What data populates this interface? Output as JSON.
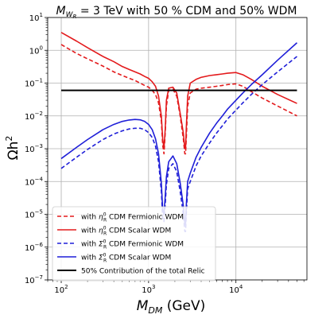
{
  "chart_data": {
    "type": "line",
    "title": {
      "prefix": "M",
      "sub": "W",
      "subsub": "R",
      "rest": " = 3 TeV with 50 % CDM and 50% WDM"
    },
    "xlabel": {
      "main": "M",
      "sub": "DM",
      "unit": " (GeV)"
    },
    "ylabel": {
      "main": "Ωh",
      "sup": "2"
    },
    "x_scale": "log",
    "y_scale": "log",
    "xlim": [
      70,
      65000
    ],
    "ylim": [
      1e-07,
      10
    ],
    "x_ticks": [
      {
        "value": 100,
        "base": "10",
        "exp": "2"
      },
      {
        "value": 1000,
        "base": "10",
        "exp": "3"
      },
      {
        "value": 10000,
        "base": "10",
        "exp": "4"
      }
    ],
    "y_ticks": [
      {
        "value": 1e-07,
        "base": "10",
        "exp": "−7"
      },
      {
        "value": 1e-06,
        "base": "10",
        "exp": "−6"
      },
      {
        "value": 1e-05,
        "base": "10",
        "exp": "−5"
      },
      {
        "value": 0.0001,
        "base": "10",
        "exp": "−4"
      },
      {
        "value": 0.001,
        "base": "10",
        "exp": "−3"
      },
      {
        "value": 0.01,
        "base": "10",
        "exp": "−2"
      },
      {
        "value": 0.1,
        "base": "10",
        "exp": "−1"
      },
      {
        "value": 1,
        "base": "10",
        "exp": "0"
      },
      {
        "value": 10,
        "base": "10",
        "exp": "1"
      }
    ],
    "grid": true,
    "legend_position": "bottom-left",
    "series": [
      {
        "legend": {
          "pre": "with ",
          "sym": "η",
          "sup": "0",
          "sub": "R",
          "post": " CDM Fermionic WDM"
        },
        "color": "#e31a1c",
        "dash": "dashed",
        "x": [
          100,
          150,
          200,
          300,
          400,
          500,
          600,
          700,
          800,
          900,
          1000,
          1100,
          1200,
          1300,
          1400,
          1450,
          1500,
          1550,
          1600,
          1700,
          1900,
          2100,
          2300,
          2500,
          2600,
          2650,
          2700,
          2800,
          3000,
          3500,
          4000,
          5000,
          6000,
          7000,
          8000,
          10000,
          12000,
          15000,
          20000,
          30000,
          50000
        ],
        "y": [
          1.5,
          0.8,
          0.55,
          0.33,
          0.22,
          0.17,
          0.14,
          0.12,
          0.1,
          0.085,
          0.075,
          0.06,
          0.045,
          0.025,
          0.007,
          0.0013,
          0.0007,
          0.003,
          0.02,
          0.06,
          0.065,
          0.04,
          0.01,
          0.002,
          0.0007,
          0.0007,
          0.002,
          0.02,
          0.05,
          0.065,
          0.07,
          0.075,
          0.08,
          0.085,
          0.09,
          0.095,
          0.08,
          0.055,
          0.035,
          0.02,
          0.01
        ]
      },
      {
        "legend": {
          "pre": "with ",
          "sym": "η",
          "sup": "0",
          "sub": "R",
          "post": " CDM Scalar WDM"
        },
        "color": "#e31a1c",
        "dash": "solid",
        "x": [
          100,
          150,
          200,
          300,
          400,
          500,
          600,
          700,
          800,
          900,
          1000,
          1100,
          1200,
          1300,
          1400,
          1450,
          1500,
          1550,
          1600,
          1700,
          1900,
          2100,
          2300,
          2500,
          2600,
          2650,
          2700,
          2800,
          3000,
          3500,
          4000,
          5000,
          6000,
          7000,
          8000,
          10000,
          12000,
          15000,
          20000,
          30000,
          50000
        ],
        "y": [
          3.5,
          1.9,
          1.2,
          0.65,
          0.45,
          0.32,
          0.26,
          0.22,
          0.19,
          0.16,
          0.14,
          0.11,
          0.08,
          0.04,
          0.01,
          0.002,
          0.001,
          0.004,
          0.03,
          0.07,
          0.075,
          0.05,
          0.012,
          0.003,
          0.001,
          0.001,
          0.004,
          0.04,
          0.1,
          0.13,
          0.15,
          0.17,
          0.18,
          0.19,
          0.2,
          0.21,
          0.18,
          0.13,
          0.08,
          0.045,
          0.024
        ]
      },
      {
        "legend": {
          "pre": "with ",
          "sym": "Σ",
          "sup": "0",
          "sub": "R",
          "post": " CDM Fermionic WDM"
        },
        "color": "#1f1fd8",
        "dash": "dashed",
        "x": [
          100,
          150,
          200,
          300,
          400,
          500,
          600,
          700,
          800,
          900,
          1000,
          1100,
          1200,
          1300,
          1400,
          1450,
          1500,
          1550,
          1600,
          1700,
          1900,
          2100,
          2300,
          2500,
          2600,
          2650,
          2700,
          2800,
          3000,
          3500,
          4000,
          5000,
          6000,
          7000,
          8000,
          10000,
          12000,
          15000,
          20000,
          30000,
          50000
        ],
        "y": [
          0.00025,
          0.00055,
          0.00095,
          0.0019,
          0.0028,
          0.0035,
          0.004,
          0.0042,
          0.0042,
          0.0038,
          0.0031,
          0.0022,
          0.0012,
          0.0004,
          5e-05,
          8e-06,
          6e-06,
          2e-05,
          8e-05,
          0.00025,
          0.00035,
          0.0002,
          5e-05,
          1e-05,
          3e-06,
          3e-06,
          1e-05,
          6e-05,
          0.0001,
          0.0003,
          0.0006,
          0.0015,
          0.003,
          0.005,
          0.008,
          0.015,
          0.025,
          0.045,
          0.09,
          0.22,
          0.65
        ]
      },
      {
        "legend": {
          "pre": "with ",
          "sym": "Σ",
          "sup": "0",
          "sub": "R",
          "post": " CDM Scalar WDM"
        },
        "color": "#1f1fd8",
        "dash": "solid",
        "x": [
          100,
          150,
          200,
          300,
          400,
          500,
          600,
          700,
          800,
          900,
          1000,
          1100,
          1200,
          1300,
          1400,
          1450,
          1500,
          1550,
          1600,
          1700,
          1900,
          2100,
          2300,
          2500,
          2600,
          2650,
          2700,
          2800,
          3000,
          3500,
          4000,
          5000,
          6000,
          7000,
          8000,
          10000,
          12000,
          15000,
          20000,
          30000,
          50000
        ],
        "y": [
          0.0005,
          0.0011,
          0.0019,
          0.0038,
          0.0055,
          0.0068,
          0.0075,
          0.0078,
          0.0076,
          0.0068,
          0.0055,
          0.0038,
          0.002,
          0.0007,
          9e-05,
          1.4e-05,
          1e-05,
          3.5e-05,
          0.00014,
          0.0004,
          0.0006,
          0.00035,
          9e-05,
          1.8e-05,
          5e-06,
          5e-06,
          1.8e-05,
          0.0001,
          0.00018,
          0.00055,
          0.0011,
          0.003,
          0.006,
          0.01,
          0.016,
          0.03,
          0.05,
          0.09,
          0.18,
          0.5,
          1.7
        ]
      },
      {
        "legend": {
          "pre": "50% Contribution of the total Relic",
          "sym": "",
          "sup": "",
          "sub": "",
          "post": ""
        },
        "color": "#000000",
        "dash": "solid",
        "x": [
          100,
          50000
        ],
        "y": [
          0.06,
          0.06
        ]
      }
    ]
  }
}
